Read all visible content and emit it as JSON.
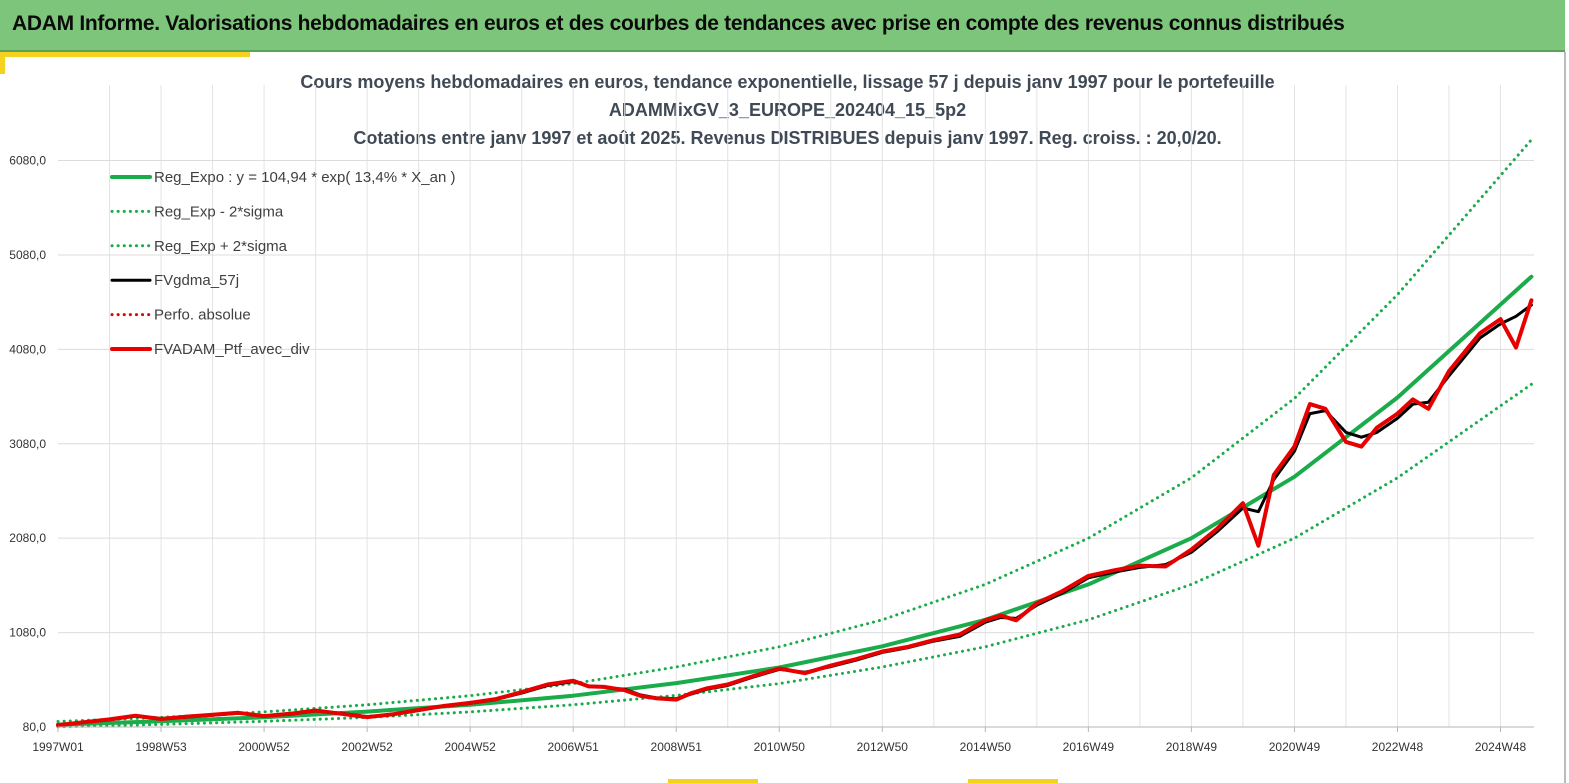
{
  "banner": {
    "title": "ADAM Informe. Valorisations hebdomadaires en euros et des courbes de tendances avec prise en compte des revenus connus distribués"
  },
  "colors": {
    "banner": "#7dc57a",
    "accent": "#f4d21f",
    "trend": "#1aab4a",
    "smoothed": "#000000",
    "portfolio": "#e60000"
  },
  "chart_data": {
    "type": "line",
    "title_lines": [
      "Cours moyens hebdomadaires  en euros, tendance exponentielle, lissage 57 j depuis janv 1997 pour le portefeuille",
      "ADAMMixGV_3_EUROPE_202404_15_5p2",
      "Cotations entre janv 1997 et août 2025. Revenus DISTRIBUES depuis janv 1997. Reg. croiss. : 20,0/20."
    ],
    "x_unit": "year",
    "x_range": [
      1997.0,
      2025.65
    ],
    "x_tick_labels": [
      "1997W01",
      "1998W53",
      "2000W52",
      "2002W52",
      "2004W52",
      "2006W51",
      "2008W51",
      "2010W50",
      "2012W50",
      "2014W50",
      "2016W49",
      "2018W49",
      "2020W49",
      "2022W48",
      "2024W48"
    ],
    "x_tick_positions": [
      1997.0,
      1999.0,
      2001.0,
      2003.0,
      2005.0,
      2007.0,
      2009.0,
      2011.0,
      2013.0,
      2015.0,
      2017.0,
      2019.0,
      2021.0,
      2023.0,
      2025.0
    ],
    "y_range": [
      80,
      6880
    ],
    "y_ticks": [
      80,
      1080,
      2080,
      3080,
      4080,
      5080,
      6080
    ],
    "y_tick_labels": [
      "80,0",
      "1080,0",
      "2080,0",
      "3080,0",
      "4080,0",
      "5080,0",
      "6080,0"
    ],
    "gridlines": true,
    "legend_position": "top-left",
    "legend": [
      {
        "label": "Reg_Expo : y = 104,94 * exp( 13,4% *  X_an )",
        "color": "#1aab4a",
        "style": "solid",
        "width": 4
      },
      {
        "label": "Reg_Exp - 2*sigma",
        "color": "#1aab4a",
        "style": "dotted",
        "width": 3
      },
      {
        "label": "Reg_Exp + 2*sigma",
        "color": "#1aab4a",
        "style": "dotted",
        "width": 3
      },
      {
        "label": "FVgdma_57j",
        "color": "#000000",
        "style": "solid",
        "width": 3
      },
      {
        "label": "Perfo. absolue",
        "color": "#e60000",
        "style": "dotted",
        "width": 3
      },
      {
        "label": "FVADAM_Ptf_avec_div",
        "color": "#e60000",
        "style": "solid",
        "width": 4
      }
    ],
    "series": [
      {
        "name": "Reg_Expo : y = 104,94 * exp( 13,4% *  X_an )",
        "x": [
          1997,
          1999,
          2001,
          2003,
          2005,
          2007,
          2009,
          2011,
          2013,
          2015,
          2017,
          2019,
          2021,
          2023,
          2025.6
        ],
        "values": [
          105,
          140,
          183,
          243,
          315,
          412,
          545,
          710,
          935,
          1215,
          1590,
          2080,
          2730,
          3570,
          4850
        ]
      },
      {
        "name": "Reg_Exp - 2*sigma",
        "x": [
          1997,
          1999,
          2001,
          2003,
          2005,
          2007,
          2009,
          2011,
          2013,
          2015,
          2017,
          2019,
          2021,
          2023,
          2025.6
        ],
        "values": [
          82,
          108,
          140,
          182,
          240,
          315,
          415,
          540,
          715,
          930,
          1215,
          1590,
          2080,
          2720,
          3710
        ]
      },
      {
        "name": "Reg_Exp + 2*sigma",
        "x": [
          1997,
          1999,
          2001,
          2003,
          2005,
          2007,
          2009,
          2011,
          2013,
          2015,
          2017,
          2019,
          2021,
          2023,
          2025.6
        ],
        "values": [
          138,
          182,
          240,
          315,
          412,
          540,
          715,
          930,
          1215,
          1590,
          2080,
          2720,
          3560,
          4660,
          6300
        ]
      },
      {
        "name": "FVgdma_57j",
        "x": [
          1997.0,
          1997.5,
          1998.0,
          1998.5,
          1999.0,
          1999.5,
          2000.0,
          2000.5,
          2001.0,
          2001.5,
          2002.0,
          2002.5,
          2003.0,
          2003.5,
          2004.0,
          2004.5,
          2005.0,
          2005.5,
          2006.0,
          2006.5,
          2007.0,
          2007.3,
          2007.6,
          2008.0,
          2008.3,
          2008.6,
          2009.0,
          2009.3,
          2009.6,
          2010.0,
          2010.5,
          2011.0,
          2011.5,
          2012.0,
          2012.5,
          2013.0,
          2013.5,
          2014.0,
          2014.5,
          2015.0,
          2015.3,
          2015.6,
          2016.0,
          2016.5,
          2017.0,
          2017.5,
          2018.0,
          2018.5,
          2019.0,
          2019.5,
          2020.0,
          2020.3,
          2020.6,
          2021.0,
          2021.3,
          2021.6,
          2022.0,
          2022.3,
          2022.6,
          2023.0,
          2023.3,
          2023.6,
          2024.0,
          2024.3,
          2024.6,
          2025.0,
          2025.3,
          2025.6
        ],
        "values": [
          100,
          130,
          155,
          195,
          170,
          185,
          205,
          225,
          200,
          215,
          250,
          225,
          190,
          210,
          255,
          300,
          330,
          370,
          440,
          520,
          560,
          515,
          500,
          480,
          420,
          390,
          380,
          430,
          480,
          520,
          610,
          690,
          660,
          720,
          790,
          870,
          920,
          990,
          1040,
          1190,
          1240,
          1230,
          1370,
          1500,
          1660,
          1720,
          1770,
          1800,
          1930,
          2150,
          2400,
          2360,
          2700,
          3000,
          3400,
          3430,
          3200,
          3150,
          3200,
          3350,
          3500,
          3520,
          3800,
          4000,
          4200,
          4350,
          4430,
          4550
        ]
      },
      {
        "name": "Perfo. absolue",
        "x": [
          1997.0,
          1997.5,
          1998.0,
          1998.5,
          1999.0,
          1999.5,
          2000.0,
          2000.5,
          2001.0,
          2001.5,
          2002.0,
          2002.5,
          2003.0,
          2003.5,
          2004.0,
          2004.5,
          2005.0,
          2005.5,
          2006.0,
          2006.5,
          2007.0,
          2007.3,
          2007.6,
          2008.0,
          2008.3,
          2008.6,
          2009.0,
          2009.3,
          2009.6,
          2010.0,
          2010.5,
          2011.0,
          2011.5,
          2012.0,
          2012.5,
          2013.0,
          2013.5,
          2014.0,
          2014.5,
          2015.0,
          2015.3,
          2015.6,
          2016.0,
          2016.5,
          2017.0,
          2017.5,
          2018.0,
          2018.5,
          2019.0,
          2019.5,
          2020.0,
          2020.3,
          2020.6,
          2021.0,
          2021.3,
          2021.6,
          2022.0,
          2022.3,
          2022.6,
          2023.0,
          2023.3,
          2023.6,
          2024.0,
          2024.3,
          2024.6,
          2025.0,
          2025.3,
          2025.6
        ],
        "values": [
          100,
          130,
          160,
          200,
          165,
          190,
          210,
          230,
          195,
          220,
          255,
          220,
          185,
          215,
          260,
          305,
          335,
          375,
          450,
          530,
          570,
          510,
          505,
          470,
          410,
          385,
          370,
          440,
          490,
          530,
          620,
          700,
          650,
          730,
          800,
          880,
          930,
          1000,
          1060,
          1210,
          1260,
          1210,
          1390,
          1520,
          1680,
          1740,
          1790,
          1780,
          1960,
          2180,
          2450,
          2000,
          2750,
          3050,
          3500,
          3450,
          3100,
          3050,
          3250,
          3400,
          3550,
          3450,
          3850,
          4050,
          4250,
          4400,
          4100,
          4600
        ]
      },
      {
        "name": "FVADAM_Ptf_avec_div",
        "x": [
          1997.0,
          1997.5,
          1998.0,
          1998.5,
          1999.0,
          1999.5,
          2000.0,
          2000.5,
          2001.0,
          2001.5,
          2002.0,
          2002.5,
          2003.0,
          2003.5,
          2004.0,
          2004.5,
          2005.0,
          2005.5,
          2006.0,
          2006.5,
          2007.0,
          2007.3,
          2007.6,
          2008.0,
          2008.3,
          2008.6,
          2009.0,
          2009.3,
          2009.6,
          2010.0,
          2010.5,
          2011.0,
          2011.5,
          2012.0,
          2012.5,
          2013.0,
          2013.5,
          2014.0,
          2014.5,
          2015.0,
          2015.3,
          2015.6,
          2016.0,
          2016.5,
          2017.0,
          2017.5,
          2018.0,
          2018.5,
          2019.0,
          2019.5,
          2020.0,
          2020.3,
          2020.6,
          2021.0,
          2021.3,
          2021.6,
          2022.0,
          2022.3,
          2022.6,
          2023.0,
          2023.3,
          2023.6,
          2024.0,
          2024.3,
          2024.6,
          2025.0,
          2025.3,
          2025.6
        ],
        "values": [
          100,
          130,
          160,
          200,
          165,
          190,
          210,
          230,
          195,
          220,
          255,
          220,
          185,
          215,
          260,
          305,
          335,
          375,
          450,
          530,
          570,
          510,
          505,
          470,
          410,
          385,
          370,
          440,
          490,
          530,
          620,
          700,
          650,
          730,
          800,
          880,
          930,
          1000,
          1060,
          1210,
          1260,
          1210,
          1390,
          1520,
          1680,
          1740,
          1790,
          1780,
          1960,
          2180,
          2450,
          2000,
          2750,
          3050,
          3500,
          3450,
          3100,
          3050,
          3250,
          3400,
          3550,
          3450,
          3850,
          4050,
          4250,
          4400,
          4100,
          4600
        ]
      }
    ]
  }
}
